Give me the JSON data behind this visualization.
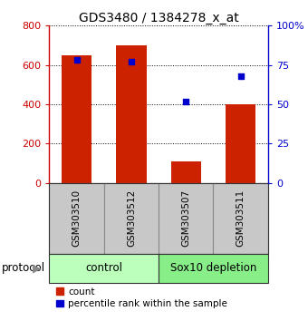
{
  "title": "GDS3480 / 1384278_x_at",
  "samples": [
    "GSM303510",
    "GSM303512",
    "GSM303507",
    "GSM303511"
  ],
  "counts": [
    650,
    700,
    110,
    400
  ],
  "percentiles": [
    78,
    77,
    52,
    68
  ],
  "ylim_left": [
    0,
    800
  ],
  "ylim_right": [
    0,
    100
  ],
  "yticks_left": [
    0,
    200,
    400,
    600,
    800
  ],
  "yticks_right": [
    0,
    25,
    50,
    75,
    100
  ],
  "bar_color": "#cc2200",
  "square_color": "#0000cc",
  "bg_color": "#ffffff",
  "grid_color": "#000000",
  "protocol_groups": [
    {
      "label": "control",
      "indices": [
        0,
        1
      ],
      "color": "#bbffbb"
    },
    {
      "label": "Sox10 depletion",
      "indices": [
        2,
        3
      ],
      "color": "#88ee88"
    }
  ],
  "protocol_label": "protocol",
  "legend_count": "count",
  "legend_percentile": "percentile rank within the sample",
  "tick_label_bg": "#c8c8c8",
  "left_axis_color": "#cc0000",
  "right_axis_color": "#0000cc",
  "bar_width": 0.55
}
